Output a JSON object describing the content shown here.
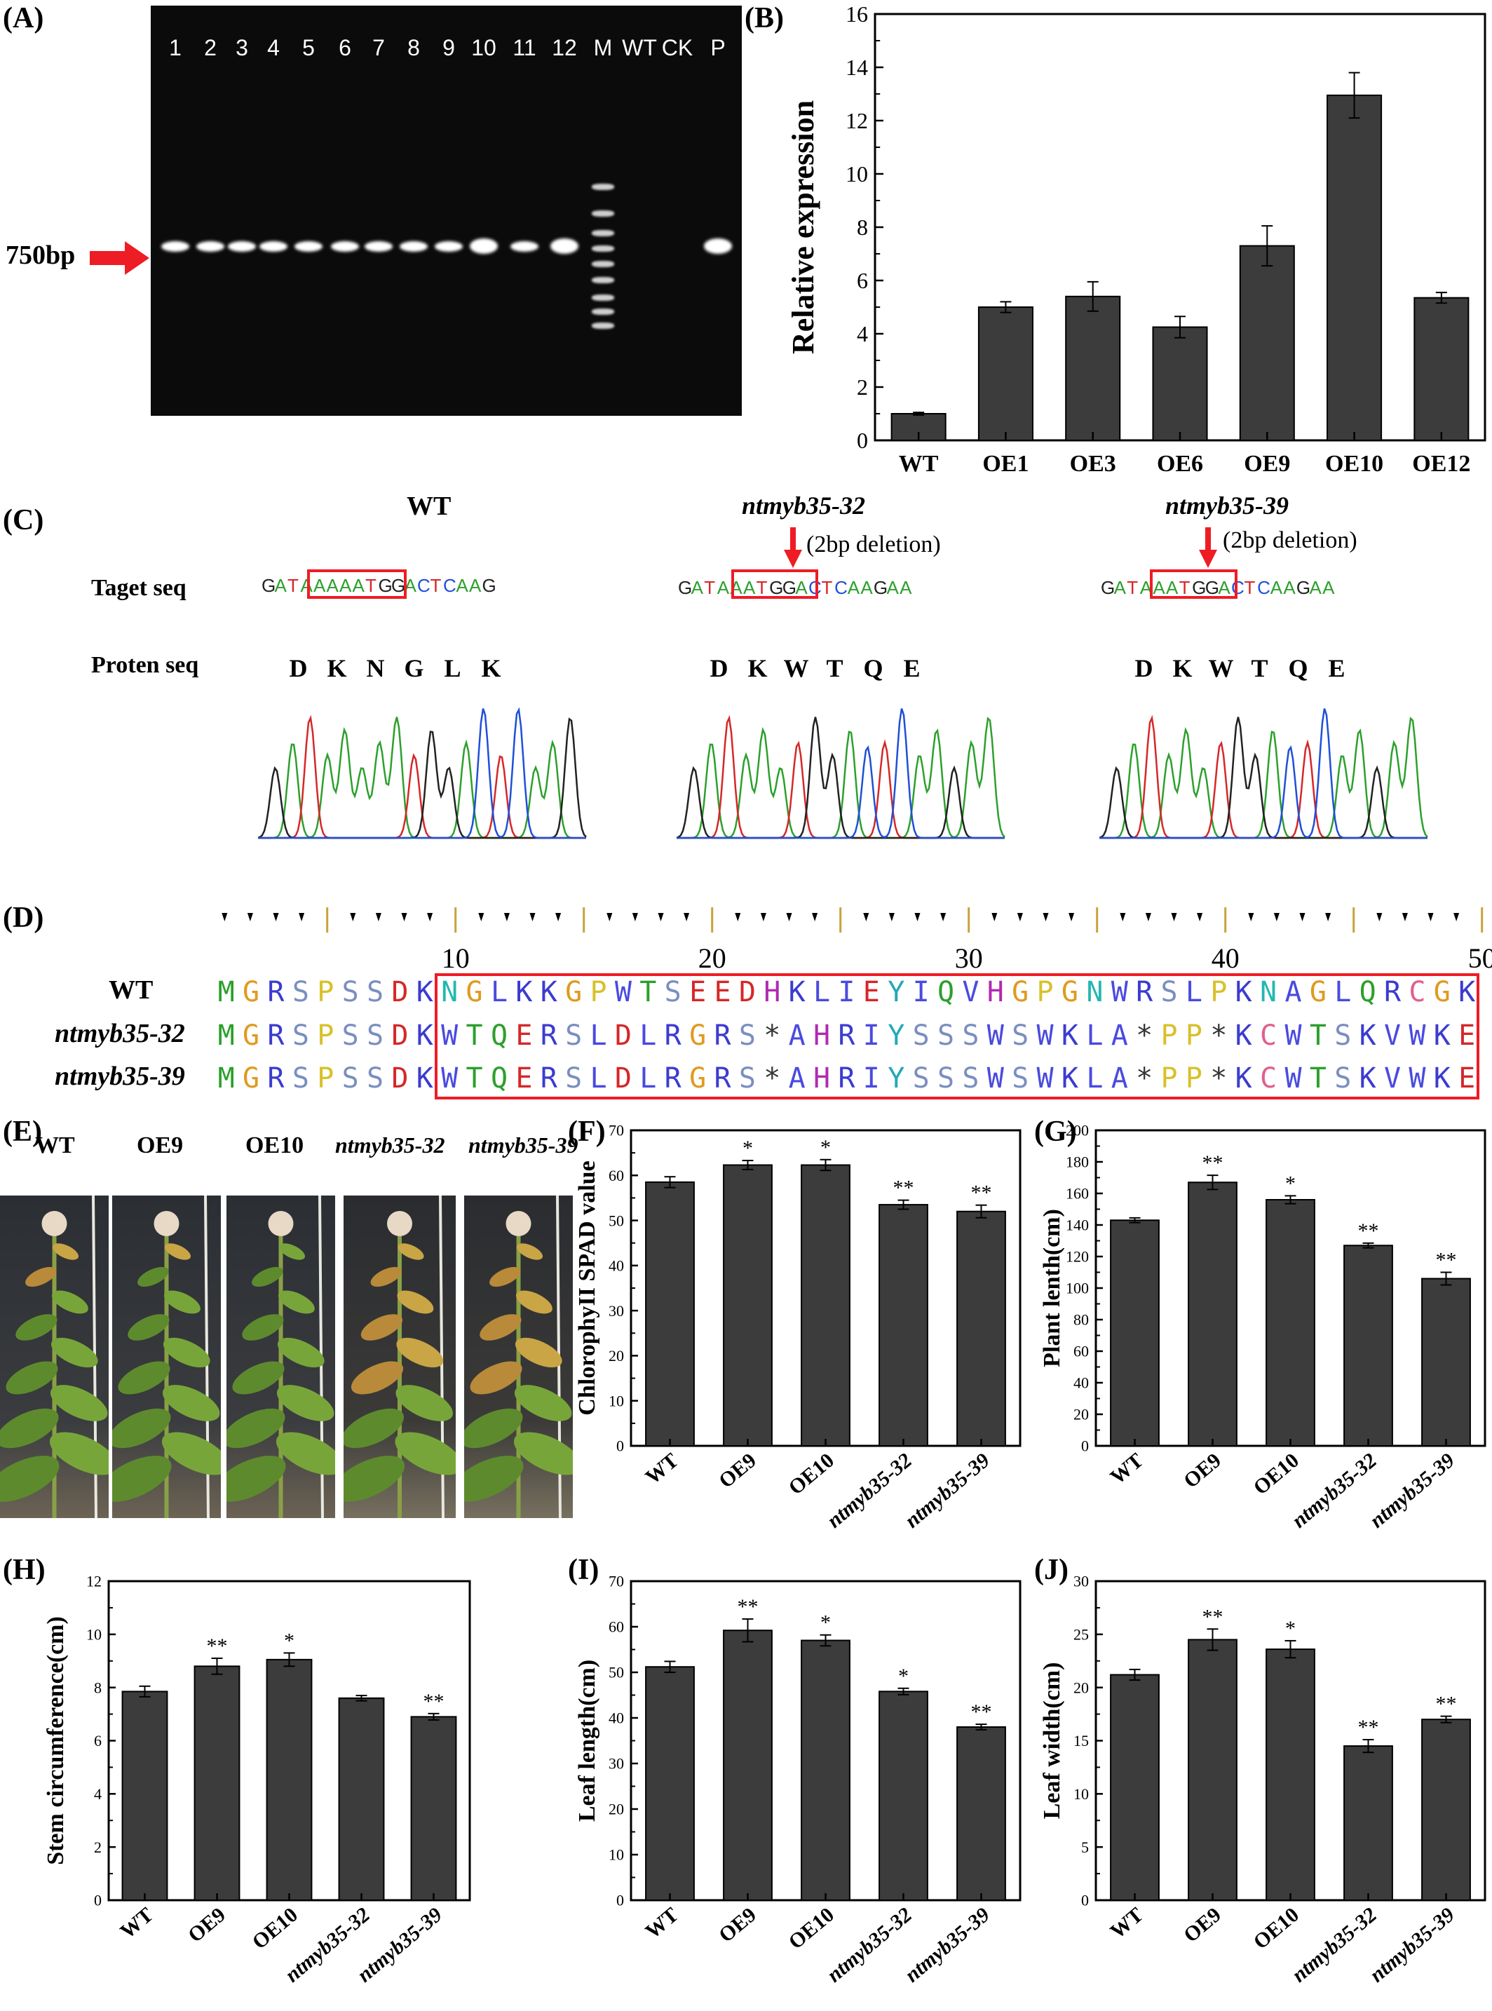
{
  "panel_labels": [
    "(A)",
    "(B)",
    "(C)",
    "(D)",
    "(E)",
    "(F)",
    "(G)",
    "(H)",
    "(I)",
    "(J)"
  ],
  "gel": {
    "lanes": [
      "1",
      "2",
      "3",
      "4",
      "5",
      "6",
      "7",
      "8",
      "9",
      "10",
      "11",
      "12",
      "M",
      "WT",
      "CK",
      "P"
    ],
    "band_size_label": "750bp"
  },
  "sequences": {
    "wt_title": "WT",
    "mut1_title": "ntmyb35-32",
    "mut2_title": "ntmyb35-39",
    "deletion_note": "(2bp deletion)",
    "target_label": "Taget seq",
    "protein_label": "Proten seq",
    "wt_target": [
      "G",
      "A",
      "T",
      "A",
      "A",
      "A",
      "A",
      "A",
      "T",
      "G",
      "G",
      "A",
      "C",
      "T",
      "C",
      "A",
      "A",
      "G"
    ],
    "mut_target": [
      "G",
      "A",
      "T",
      "A",
      "A",
      "A",
      "T",
      "G",
      "G",
      "A",
      "C",
      "T",
      "C",
      "A",
      "A",
      "G",
      "A",
      "A"
    ],
    "wt_protein": [
      "D",
      "K",
      "N",
      "G",
      "L",
      "K"
    ],
    "mut_protein": [
      "D",
      "K",
      "W",
      "T",
      "Q",
      "E"
    ],
    "base_colors": {
      "A": "#2ca02c",
      "T": "#d62728",
      "G": "#222222",
      "C": "#1f4fd8"
    }
  },
  "alignment": {
    "ruler_numbers": [
      "10",
      "20",
      "30",
      "40",
      "50"
    ],
    "rows": [
      {
        "name": "WT",
        "seq": "MGRSPSSDKNGLKKGPWTSEEDHKLIEYIQVHGPGNWRSLPKNAGLQRCGK"
      },
      {
        "name": "ntmyb35-32",
        "seq": "MGRSPSSDKWTQERSLDLRGRS*AHRIYSSSWSWKLA*PP*KCWTSKVWKE"
      },
      {
        "name": "ntmyb35-39",
        "seq": "MGRSPSSDKWTQERSLDLRGRS*AHRIYSSSWSWKLA*PP*KCWTSKVWKE"
      }
    ],
    "aa_colors": {
      "M": "#2aa02a",
      "G": "#e09a1f",
      "R": "#3b3bd0",
      "S": "#7a8ec0",
      "P": "#d8c02a",
      "D": "#d62728",
      "K": "#3b3bd0",
      "N": "#23b8b0",
      "L": "#4a4ae0",
      "W": "#4a4ae0",
      "T": "#2ca02c",
      "E": "#d62728",
      "H": "#b02ab0",
      "I": "#4a4ae0",
      "Y": "#23a8b8",
      "Q": "#2ca02c",
      "V": "#4a4ae0",
      "A": "#4a4ae0",
      "C": "#e06090",
      "*": "#333333"
    }
  },
  "photos": {
    "labels": [
      "WT",
      "OE9",
      "OE10",
      "ntmyb35-32",
      "ntmyb35-39"
    ]
  },
  "chart_data": [
    {
      "panel": "B",
      "type": "bar",
      "categories": [
        "WT",
        "OE1",
        "OE3",
        "OE6",
        "OE9",
        "OE10",
        "OE12"
      ],
      "values": [
        1.0,
        5.0,
        5.4,
        4.25,
        7.3,
        12.95,
        5.35
      ],
      "errors": [
        0.05,
        0.2,
        0.55,
        0.4,
        0.75,
        0.85,
        0.2
      ],
      "stars": [
        "",
        "",
        "",
        "",
        "",
        "",
        ""
      ],
      "ylabel": "Relative expression",
      "ylim": [
        0,
        16
      ],
      "yticks": [
        0,
        2,
        4,
        6,
        8,
        10,
        12,
        14,
        16
      ]
    },
    {
      "panel": "F",
      "type": "bar",
      "categories": [
        "WT",
        "OE9",
        "OE10",
        "ntmyb35-32",
        "ntmyb35-39"
      ],
      "values": [
        58.5,
        62.3,
        62.3,
        53.5,
        52.0
      ],
      "errors": [
        1.2,
        1.0,
        1.2,
        1.0,
        1.4
      ],
      "stars": [
        "",
        "*",
        "*",
        "**",
        "**"
      ],
      "ylabel": "ChlorophyII SPAD value",
      "ylim": [
        0,
        70
      ],
      "yticks": [
        0,
        10,
        20,
        30,
        40,
        50,
        60,
        70
      ]
    },
    {
      "panel": "G",
      "type": "bar",
      "categories": [
        "WT",
        "OE9",
        "OE10",
        "ntmyb35-32",
        "ntmyb35-39"
      ],
      "values": [
        143,
        167,
        156,
        127,
        106
      ],
      "errors": [
        1.5,
        4.5,
        2.5,
        1.5,
        4.0
      ],
      "stars": [
        "",
        "**",
        "*",
        "**",
        "**"
      ],
      "ylabel": "Plant lenth(cm)",
      "ylim": [
        0,
        200
      ],
      "yticks": [
        0,
        20,
        40,
        60,
        80,
        100,
        120,
        140,
        160,
        180,
        200
      ]
    },
    {
      "panel": "H",
      "type": "bar",
      "categories": [
        "WT",
        "OE9",
        "OE10",
        "ntmyb35-32",
        "ntmyb35-39"
      ],
      "values": [
        7.85,
        8.8,
        9.05,
        7.6,
        6.9
      ],
      "errors": [
        0.2,
        0.3,
        0.25,
        0.1,
        0.12
      ],
      "stars": [
        "",
        "**",
        "*",
        "",
        "**"
      ],
      "ylabel": "Stem circumference(cm)",
      "ylim": [
        0,
        12
      ],
      "yticks": [
        0,
        2,
        4,
        6,
        8,
        10,
        12
      ]
    },
    {
      "panel": "I",
      "type": "bar",
      "categories": [
        "WT",
        "OE9",
        "OE10",
        "ntmyb35-32",
        "ntmyb35-39"
      ],
      "values": [
        51.2,
        59.2,
        57.0,
        45.8,
        38.0
      ],
      "errors": [
        1.2,
        2.5,
        1.2,
        0.7,
        0.6
      ],
      "stars": [
        "",
        "**",
        "*",
        "*",
        "**"
      ],
      "ylabel": "Leaf length(cm)",
      "ylim": [
        0,
        70
      ],
      "yticks": [
        0,
        10,
        20,
        30,
        40,
        50,
        60,
        70
      ]
    },
    {
      "panel": "J",
      "type": "bar",
      "categories": [
        "WT",
        "OE9",
        "OE10",
        "ntmyb35-32",
        "ntmyb35-39"
      ],
      "values": [
        21.2,
        24.5,
        23.6,
        14.5,
        17.0
      ],
      "errors": [
        0.5,
        1.0,
        0.8,
        0.6,
        0.3
      ],
      "stars": [
        "",
        "**",
        "*",
        "**",
        "**"
      ],
      "ylabel": "Leaf width(cm)",
      "ylim": [
        0,
        30
      ],
      "yticks": [
        0,
        5,
        10,
        15,
        20,
        25,
        30
      ]
    }
  ]
}
